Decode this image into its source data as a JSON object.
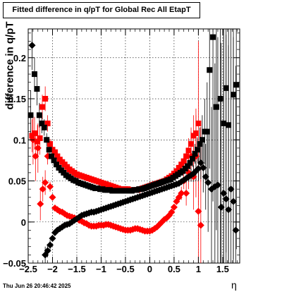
{
  "chart_data": {
    "type": "scatter",
    "title": "Fitted difference in q/pT for Global Rec All EtapT",
    "xlabel": "η",
    "ylabel": "difference in q/pT",
    "xlim": [
      -2.5,
      1.85
    ],
    "ylim": [
      -0.05,
      0.235
    ],
    "xticks": [
      -2.5,
      -2,
      -1.5,
      -1,
      -0.5,
      0,
      0.5,
      1,
      1.5
    ],
    "xtick_labels": [
      "−2.5",
      "−2",
      "−1.5",
      "−1",
      "−0.5",
      "0",
      "0.5",
      "1",
      "1.5"
    ],
    "yticks": [
      -0.05,
      0,
      0.05,
      0.1,
      0.15,
      0.2
    ],
    "ytick_labels": [
      "−0.05",
      "0",
      "0.05",
      "0.1",
      "0.15",
      "0.2"
    ],
    "grid": true,
    "timestamp": "Thu Jun 26 20:46:42 2025",
    "series": [
      {
        "marker": "square",
        "color": "#ff0000",
        "x": [
          -2.42,
          -2.37,
          -2.31,
          -2.26,
          -2.21,
          -2.15,
          -2.1,
          -2.05,
          -2.0,
          -1.95,
          -1.9,
          -1.85,
          -1.8,
          -1.75,
          -1.7,
          -1.65,
          -1.6,
          -1.55,
          -1.5,
          -1.45,
          -1.4,
          -1.35,
          -1.3,
          -1.25,
          -1.2,
          -1.15,
          -1.1,
          -1.05,
          -1.0,
          -0.95,
          -0.9,
          -0.85,
          -0.8,
          -0.75,
          -0.7,
          -0.65,
          -0.6,
          -0.55,
          -0.5,
          -0.45,
          -0.4,
          -0.35,
          -0.3,
          -0.25,
          -0.2,
          -0.15,
          -0.1,
          -0.05,
          0.0,
          0.05,
          0.1,
          0.15,
          0.2,
          0.25,
          0.3,
          0.35,
          0.4,
          0.45,
          0.5,
          0.55,
          0.6,
          0.65,
          0.7,
          0.75,
          0.8,
          0.85,
          0.9,
          0.95,
          1.0
        ],
        "y": [
          0.105,
          0.108,
          0.098,
          0.102,
          0.14,
          0.15,
          0.12,
          0.095,
          0.088,
          0.085,
          0.08,
          0.076,
          0.073,
          0.07,
          0.067,
          0.064,
          0.062,
          0.06,
          0.058,
          0.057,
          0.056,
          0.055,
          0.054,
          0.053,
          0.052,
          0.051,
          0.05,
          0.049,
          0.048,
          0.047,
          0.046,
          0.045,
          0.044,
          0.043,
          0.042,
          0.041,
          0.04,
          0.04,
          0.04,
          0.04,
          0.039,
          0.039,
          0.039,
          0.039,
          0.04,
          0.041,
          0.042,
          0.043,
          0.044,
          0.045,
          0.046,
          0.047,
          0.048,
          0.049,
          0.05,
          0.052,
          0.054,
          0.056,
          0.059,
          0.062,
          0.066,
          0.07,
          0.074,
          0.08,
          0.087,
          0.095,
          0.105,
          0.108,
          0.12
        ],
        "err": [
          0.02,
          0.02,
          0.02,
          0.02,
          0.015,
          0.015,
          0.01,
          0.006,
          0.004,
          0.003,
          0.003,
          0.002,
          0.002,
          0.002,
          0.002,
          0.002,
          0.002,
          0.002,
          0.002,
          0.002,
          0.002,
          0.002,
          0.002,
          0.002,
          0.002,
          0.002,
          0.002,
          0.002,
          0.002,
          0.002,
          0.002,
          0.002,
          0.002,
          0.002,
          0.002,
          0.002,
          0.002,
          0.002,
          0.002,
          0.002,
          0.002,
          0.002,
          0.002,
          0.002,
          0.002,
          0.002,
          0.002,
          0.002,
          0.002,
          0.002,
          0.002,
          0.002,
          0.002,
          0.002,
          0.002,
          0.002,
          0.002,
          0.002,
          0.003,
          0.003,
          0.004,
          0.005,
          0.006,
          0.01,
          0.015,
          0.02,
          0.025,
          0.03,
          0.1
        ]
      },
      {
        "marker": "diamond",
        "color": "#ff0000",
        "x": [
          -2.4,
          -2.35,
          -2.3,
          -2.25,
          -2.2,
          -2.15,
          -2.1,
          -2.05,
          -2.0,
          -1.95,
          -1.9,
          -1.85,
          -1.8,
          -1.75,
          -1.7,
          -1.65,
          -1.6,
          -1.55,
          -1.5,
          -1.45,
          -1.4,
          -1.35,
          -1.3,
          -1.25,
          -1.2,
          -1.15,
          -1.1,
          -1.05,
          -1.0,
          -0.95,
          -0.9,
          -0.85,
          -0.8,
          -0.75,
          -0.7,
          -0.65,
          -0.6,
          -0.55,
          -0.5,
          -0.45,
          -0.4,
          -0.35,
          -0.3,
          -0.25,
          -0.2,
          -0.15,
          -0.1,
          -0.05,
          0.0,
          0.05,
          0.1,
          0.15,
          0.2,
          0.25,
          0.3,
          0.35,
          0.4,
          0.45,
          0.5,
          0.55,
          0.6,
          0.65,
          0.7,
          0.75,
          0.8,
          0.85,
          0.9,
          0.95,
          1.0,
          1.05
        ],
        "y": [
          0.1,
          0.08,
          0.09,
          0.022,
          0.04,
          0.048,
          0.08,
          0.043,
          0.03,
          0.017,
          0.015,
          0.013,
          0.012,
          0.01,
          0.008,
          0.007,
          0.006,
          0.005,
          0.004,
          0.002,
          0.001,
          -0.001,
          -0.002,
          -0.004,
          -0.005,
          -0.005,
          -0.005,
          -0.004,
          -0.004,
          -0.004,
          -0.003,
          -0.003,
          -0.004,
          -0.005,
          -0.006,
          -0.007,
          -0.008,
          -0.009,
          -0.01,
          -0.01,
          -0.01,
          -0.009,
          -0.008,
          -0.008,
          -0.009,
          -0.01,
          -0.011,
          -0.011,
          -0.011,
          -0.01,
          -0.008,
          -0.006,
          -0.003,
          0.0,
          0.003,
          0.005,
          0.008,
          0.012,
          0.018,
          0.025,
          0.03,
          0.035,
          0.05,
          0.035,
          0.06,
          0.08,
          0.055,
          0.08,
          0.013,
          -0.004
        ],
        "err": [
          0.03,
          0.03,
          0.03,
          0.02,
          0.015,
          0.015,
          0.01,
          0.006,
          0.004,
          0.003,
          0.003,
          0.002,
          0.002,
          0.002,
          0.002,
          0.002,
          0.002,
          0.002,
          0.002,
          0.002,
          0.002,
          0.002,
          0.002,
          0.002,
          0.002,
          0.002,
          0.002,
          0.002,
          0.002,
          0.002,
          0.002,
          0.002,
          0.002,
          0.002,
          0.002,
          0.002,
          0.002,
          0.002,
          0.002,
          0.002,
          0.002,
          0.002,
          0.002,
          0.002,
          0.002,
          0.002,
          0.002,
          0.002,
          0.002,
          0.002,
          0.002,
          0.002,
          0.002,
          0.002,
          0.002,
          0.002,
          0.002,
          0.002,
          0.003,
          0.004,
          0.006,
          0.008,
          0.01,
          0.015,
          0.02,
          0.03,
          0.04,
          0.05,
          0.08,
          0.12
        ]
      },
      {
        "marker": "square",
        "color": "#000000",
        "x": [
          -2.45,
          -2.37,
          -2.32,
          -2.27,
          -2.22,
          -2.17,
          -2.12,
          -2.07,
          -2.02,
          -1.97,
          -1.92,
          -1.87,
          -1.82,
          -1.77,
          -1.72,
          -1.67,
          -1.62,
          -1.57,
          -1.52,
          -1.47,
          -1.42,
          -1.37,
          -1.32,
          -1.27,
          -1.22,
          -1.17,
          -1.12,
          -1.07,
          -1.02,
          -0.97,
          -0.92,
          -0.87,
          -0.82,
          -0.77,
          -0.72,
          -0.67,
          -0.62,
          -0.57,
          -0.52,
          -0.47,
          -0.42,
          -0.37,
          -0.32,
          -0.27,
          -0.22,
          -0.17,
          -0.12,
          -0.07,
          -0.02,
          0.03,
          0.08,
          0.13,
          0.18,
          0.23,
          0.28,
          0.33,
          0.38,
          0.43,
          0.48,
          0.53,
          0.58,
          0.63,
          0.68,
          0.73,
          0.78,
          0.83,
          0.88,
          0.93,
          0.98,
          1.03,
          1.08,
          1.13,
          1.18,
          1.23,
          1.3,
          1.37,
          1.45,
          1.52,
          1.57,
          1.62,
          1.72,
          1.78
        ],
        "y": [
          0.13,
          0.18,
          0.162,
          0.13,
          0.12,
          0.115,
          0.1,
          0.088,
          0.08,
          0.075,
          0.07,
          0.066,
          0.063,
          0.06,
          0.057,
          0.055,
          0.053,
          0.051,
          0.05,
          0.048,
          0.047,
          0.046,
          0.045,
          0.044,
          0.043,
          0.042,
          0.041,
          0.041,
          0.04,
          0.04,
          0.039,
          0.039,
          0.039,
          0.038,
          0.038,
          0.038,
          0.038,
          0.038,
          0.038,
          0.038,
          0.038,
          0.038,
          0.039,
          0.039,
          0.04,
          0.04,
          0.041,
          0.042,
          0.043,
          0.044,
          0.045,
          0.046,
          0.047,
          0.048,
          0.049,
          0.05,
          0.051,
          0.052,
          0.054,
          0.056,
          0.058,
          0.06,
          0.062,
          0.065,
          0.068,
          0.072,
          0.077,
          0.083,
          0.088,
          0.095,
          0.1,
          0.11,
          0.11,
          0.185,
          0.225,
          0.14,
          0.15,
          0.12,
          0.163,
          0.118,
          0.155,
          0.167
        ],
        "err": [
          0.03,
          0.02,
          0.02,
          0.015,
          0.012,
          0.01,
          0.008,
          0.006,
          0.004,
          0.003,
          0.003,
          0.002,
          0.002,
          0.002,
          0.002,
          0.002,
          0.002,
          0.002,
          0.002,
          0.002,
          0.002,
          0.002,
          0.002,
          0.002,
          0.002,
          0.002,
          0.002,
          0.002,
          0.002,
          0.002,
          0.002,
          0.002,
          0.002,
          0.002,
          0.002,
          0.002,
          0.002,
          0.002,
          0.002,
          0.002,
          0.002,
          0.002,
          0.002,
          0.002,
          0.002,
          0.002,
          0.002,
          0.002,
          0.002,
          0.002,
          0.002,
          0.002,
          0.002,
          0.002,
          0.002,
          0.002,
          0.002,
          0.002,
          0.002,
          0.003,
          0.003,
          0.004,
          0.004,
          0.005,
          0.006,
          0.008,
          0.01,
          0.012,
          0.015,
          0.02,
          0.03,
          0.04,
          0.06,
          0.12,
          0.2,
          0.15,
          0.2,
          0.2,
          0.2,
          0.2,
          0.2,
          0.2
        ]
      },
      {
        "marker": "diamond",
        "color": "#000000",
        "x": [
          -2.42,
          -2.15,
          -2.1,
          -2.05,
          -2.0,
          -1.95,
          -1.9,
          -1.85,
          -1.8,
          -1.75,
          -1.7,
          -1.65,
          -1.6,
          -1.55,
          -1.5,
          -1.45,
          -1.4,
          -1.35,
          -1.3,
          -1.25,
          -1.2,
          -1.15,
          -1.1,
          -1.05,
          -1.0,
          -0.95,
          -0.9,
          -0.85,
          -0.8,
          -0.75,
          -0.7,
          -0.65,
          -0.6,
          -0.55,
          -0.5,
          -0.45,
          -0.4,
          -0.35,
          -0.3,
          -0.25,
          -0.2,
          -0.15,
          -0.1,
          -0.05,
          0.0,
          0.05,
          0.1,
          0.15,
          0.2,
          0.25,
          0.3,
          0.35,
          0.4,
          0.45,
          0.5,
          0.55,
          0.6,
          0.65,
          0.7,
          0.75,
          0.8,
          0.85,
          0.9,
          0.95,
          1.0,
          1.05,
          1.1,
          1.15,
          1.2,
          1.27,
          1.34,
          1.4,
          1.47,
          1.52,
          1.57,
          1.62,
          1.67,
          1.72,
          1.77
        ],
        "y": [
          0.215,
          -0.04,
          -0.035,
          -0.028,
          -0.02,
          -0.013,
          -0.01,
          -0.008,
          -0.006,
          -0.004,
          -0.003,
          -0.002,
          0.0,
          0.002,
          0.004,
          0.006,
          0.008,
          0.009,
          0.01,
          0.011,
          0.012,
          0.012,
          0.013,
          0.014,
          0.015,
          0.016,
          0.017,
          0.018,
          0.019,
          0.02,
          0.021,
          0.022,
          0.023,
          0.024,
          0.025,
          0.026,
          0.027,
          0.028,
          0.029,
          0.03,
          0.031,
          0.032,
          0.033,
          0.034,
          0.035,
          0.036,
          0.037,
          0.038,
          0.039,
          0.04,
          0.041,
          0.042,
          0.043,
          0.044,
          0.045,
          0.046,
          0.047,
          0.049,
          0.051,
          0.053,
          0.055,
          0.057,
          0.059,
          0.062,
          0.065,
          0.072,
          0.066,
          0.055,
          0.048,
          0.04,
          0.043,
          0.045,
          0.018,
          0.035,
          0.028,
          0.015,
          0.04,
          0.025,
          -0.01
        ],
        "err": [
          0.03,
          0.01,
          0.008,
          0.006,
          0.004,
          0.003,
          0.003,
          0.002,
          0.002,
          0.002,
          0.002,
          0.002,
          0.002,
          0.002,
          0.002,
          0.002,
          0.002,
          0.002,
          0.002,
          0.002,
          0.002,
          0.002,
          0.002,
          0.002,
          0.002,
          0.002,
          0.002,
          0.002,
          0.002,
          0.002,
          0.002,
          0.002,
          0.002,
          0.002,
          0.002,
          0.002,
          0.002,
          0.002,
          0.002,
          0.002,
          0.002,
          0.002,
          0.002,
          0.002,
          0.002,
          0.002,
          0.002,
          0.002,
          0.002,
          0.002,
          0.002,
          0.002,
          0.002,
          0.002,
          0.002,
          0.002,
          0.003,
          0.003,
          0.004,
          0.005,
          0.006,
          0.008,
          0.01,
          0.012,
          0.015,
          0.02,
          0.03,
          0.04,
          0.06,
          0.1,
          0.15,
          0.18,
          0.2,
          0.2,
          0.2,
          0.2,
          0.2,
          0.2,
          0.2
        ]
      }
    ]
  }
}
